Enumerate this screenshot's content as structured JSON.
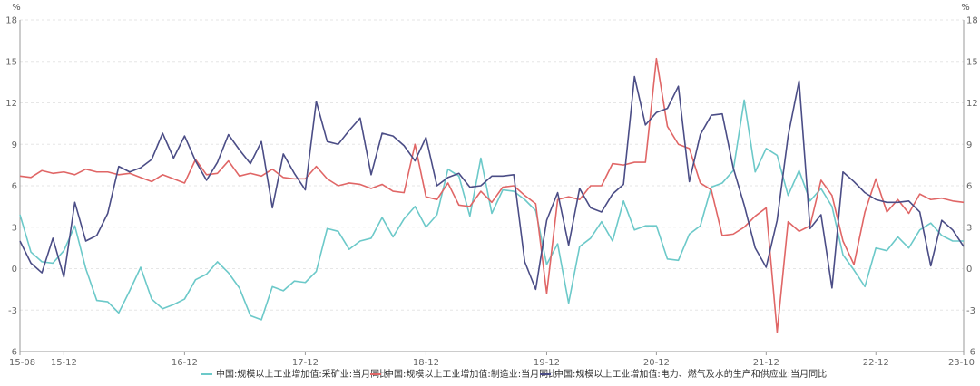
{
  "chart_data": {
    "type": "line",
    "title": "",
    "xlabel": "",
    "ylabel": "",
    "y_unit_left": "%",
    "y_unit_right": "%",
    "ylim": [
      -6,
      18
    ],
    "yticks": [
      -6,
      -3,
      0,
      3,
      6,
      9,
      12,
      15,
      18
    ],
    "x_tick_labels": [
      "15-08",
      "15-12",
      "16-12",
      "17-12",
      "18-12",
      "19-12",
      "20-12",
      "21-12",
      "22-12",
      "23-10"
    ],
    "grid": true,
    "legend_position": "bottom",
    "x": [
      "15-08",
      "15-09",
      "15-10",
      "15-11",
      "15-12",
      "16-02",
      "16-03",
      "16-04",
      "16-05",
      "16-06",
      "16-07",
      "16-08",
      "16-09",
      "16-10",
      "16-11",
      "16-12",
      "17-02",
      "17-03",
      "17-04",
      "17-05",
      "17-06",
      "17-07",
      "17-08",
      "17-09",
      "17-10",
      "17-11",
      "17-12",
      "18-02",
      "18-03",
      "18-04",
      "18-05",
      "18-06",
      "18-07",
      "18-08",
      "18-09",
      "18-10",
      "18-11",
      "18-12",
      "19-02",
      "19-03",
      "19-04",
      "19-05",
      "19-06",
      "19-07",
      "19-08",
      "19-09",
      "19-10",
      "19-11",
      "19-12",
      "20-03",
      "20-04",
      "20-05",
      "20-06",
      "20-07",
      "20-08",
      "20-09",
      "20-10",
      "20-11",
      "20-12",
      "21-03",
      "21-04",
      "21-05",
      "21-06",
      "21-07",
      "21-08",
      "21-09",
      "21-10",
      "21-11",
      "21-12",
      "22-03",
      "22-04",
      "22-05",
      "22-06",
      "22-07",
      "22-08",
      "22-09",
      "22-10",
      "22-11",
      "22-12",
      "23-03",
      "23-04",
      "23-05",
      "23-06",
      "23-07",
      "23-08",
      "23-09",
      "23-10"
    ],
    "series": [
      {
        "name": "中国:规模以上工业增加值:采矿业:当月同比",
        "color": "#6cc9c9",
        "values": [
          3.9,
          1.2,
          0.5,
          0.4,
          1.3,
          3.1,
          0.0,
          -2.3,
          -2.4,
          -3.2,
          -1.6,
          0.1,
          -2.2,
          -2.9,
          -2.6,
          -2.2,
          -0.8,
          -0.4,
          0.5,
          -0.3,
          -1.4,
          -3.4,
          -3.7,
          -1.3,
          -1.6,
          -0.9,
          -1.0,
          -0.2,
          2.9,
          2.7,
          1.4,
          2.0,
          2.2,
          3.7,
          2.3,
          3.6,
          4.5,
          3.0,
          3.9,
          7.2,
          6.7,
          3.8,
          8.0,
          4.0,
          5.7,
          5.6,
          5.0,
          4.2,
          0.3,
          1.8,
          -2.5,
          1.6,
          2.2,
          3.4,
          2.0,
          4.9,
          2.8,
          3.1,
          3.1,
          0.7,
          0.6,
          2.5,
          3.1,
          5.9,
          6.2,
          7.1,
          12.2,
          7.0,
          8.7,
          8.2,
          5.3,
          7.1,
          4.9,
          5.8,
          4.5,
          1.0,
          -0.1,
          -1.3,
          1.5,
          1.3,
          2.3,
          1.5,
          2.8,
          3.3,
          2.4,
          2.0,
          2.0
        ]
      },
      {
        "name": "中国:规模以上工业增加值:制造业:当月同比",
        "color": "#e06666",
        "values": [
          6.7,
          6.6,
          7.1,
          6.9,
          7.0,
          6.8,
          7.2,
          7.0,
          7.0,
          6.8,
          6.9,
          6.6,
          6.3,
          6.8,
          6.5,
          6.2,
          7.9,
          6.8,
          6.9,
          7.8,
          6.7,
          6.9,
          6.7,
          7.2,
          6.6,
          6.5,
          6.5,
          7.4,
          6.5,
          6.0,
          6.2,
          6.1,
          5.8,
          6.1,
          5.6,
          5.5,
          9.0,
          5.2,
          5.0,
          6.2,
          4.6,
          4.5,
          5.6,
          4.8,
          5.9,
          6.0,
          5.3,
          4.7,
          -1.8,
          5.0,
          5.2,
          5.0,
          6.0,
          6.0,
          7.6,
          7.5,
          7.7,
          7.7,
          15.2,
          10.3,
          9.0,
          8.7,
          6.2,
          5.7,
          2.4,
          2.5,
          3.0,
          3.8,
          4.4,
          -4.6,
          3.4,
          2.7,
          3.1,
          6.4,
          5.3,
          2.0,
          0.3,
          4.1,
          6.5,
          4.1,
          5.0,
          4.0,
          5.4,
          5.0,
          5.1,
          4.9,
          4.8
        ]
      },
      {
        "name": "中国:规模以上工业增加值:电力、燃气及水的生产和供应业:当月同比",
        "color": "#4b4d86",
        "values": [
          2.0,
          0.4,
          -0.3,
          2.2,
          -0.6,
          4.8,
          2.0,
          2.4,
          4.0,
          7.4,
          7.0,
          7.3,
          7.9,
          9.8,
          8.0,
          9.6,
          7.8,
          6.4,
          7.7,
          9.7,
          8.6,
          7.6,
          9.2,
          4.4,
          8.3,
          6.9,
          5.7,
          12.1,
          9.2,
          9.0,
          10.0,
          10.9,
          6.8,
          9.8,
          9.6,
          8.9,
          7.8,
          9.5,
          6.0,
          6.6,
          6.9,
          5.9,
          6.0,
          6.7,
          6.7,
          6.8,
          0.5,
          -1.5,
          3.5,
          5.5,
          1.7,
          5.8,
          4.4,
          4.1,
          5.4,
          6.1,
          13.9,
          10.4,
          11.3,
          11.6,
          13.2,
          6.3,
          9.7,
          11.1,
          11.2,
          7.3,
          4.6,
          1.5,
          0.1,
          3.5,
          9.6,
          13.6,
          2.9,
          3.9,
          -1.4,
          7.0,
          6.3,
          5.5,
          5.0,
          4.8,
          4.8,
          4.9,
          4.1,
          0.2,
          3.5,
          2.8,
          1.6
        ]
      }
    ]
  }
}
